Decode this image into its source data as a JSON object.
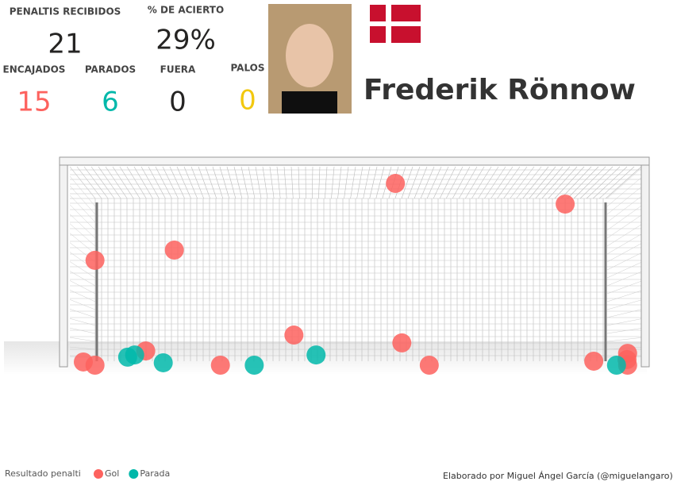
{
  "stats": [
    {
      "label": "PENALTIS RECIBIDOS",
      "value": 21,
      "color": "#252423"
    },
    {
      "label": "% DE ACIERTO",
      "value": "29%",
      "color": "#252423"
    },
    {
      "label": "ENCAJADOS",
      "value": 15,
      "color": "#fd625e"
    },
    {
      "label": "PARADOS",
      "value": 6,
      "color": "#01b8aa"
    },
    {
      "label": "FUERA",
      "value": 0,
      "color": "#252423"
    },
    {
      "label": "PALOS",
      "value": 0,
      "color": "#f2c80f"
    }
  ],
  "player": "Frederik Rönnow",
  "credit": "Elaborado por Miguel Ángel García (@miguelangaro)",
  "chart_data": {
    "type": "scatter",
    "legend_title": "Resultado penalti",
    "xlim": [
      0,
      100
    ],
    "ylim": [
      0,
      100
    ],
    "series": [
      {
        "name": "Gol",
        "color": "#fd625e",
        "x": [
          56.9,
          86.0,
          5.4,
          19.0,
          39.5,
          58.0,
          14.1,
          3.4,
          5.4,
          26.9,
          62.7,
          90.9,
          96.7,
          96.7,
          96.6
        ],
        "values": [
          90.5,
          80.2,
          52.2,
          57.3,
          15.0,
          11.1,
          7.1,
          1.6,
          0,
          0,
          0,
          2.0,
          5.9,
          0,
          2.8
        ]
      },
      {
        "name": "Parada",
        "color": "#01b8aa",
        "x": [
          11.0,
          12.2,
          17.1,
          32.7,
          43.3,
          94.8
        ],
        "values": [
          4.0,
          5.1,
          1.2,
          0,
          5.1,
          0
        ]
      }
    ]
  }
}
